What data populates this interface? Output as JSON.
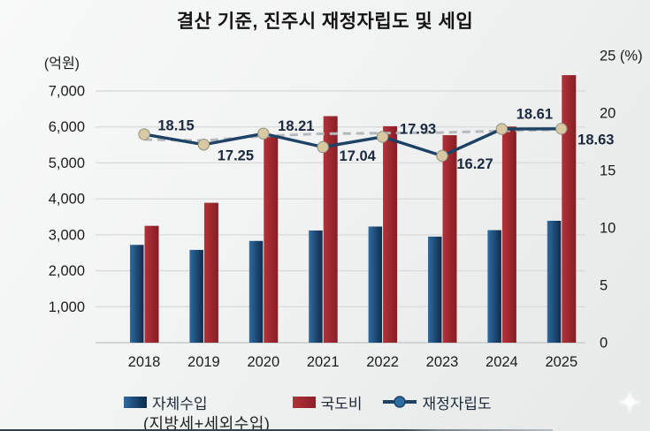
{
  "title": "결산 기준, 진주시 재정자립도 및 세입",
  "chart_data": {
    "type": "bar+line combo",
    "categories": [
      "2018",
      "2019",
      "2020",
      "2021",
      "2022",
      "2023",
      "2024",
      "2025"
    ],
    "series": [
      {
        "name": "자체수입",
        "type": "bar",
        "axis": "left",
        "color_from": "#2f6ba1",
        "color_to": "#0f2c4c",
        "values": [
          2720,
          2580,
          2830,
          3120,
          3230,
          2950,
          3130,
          3390
        ]
      },
      {
        "name": "국도비",
        "type": "bar",
        "axis": "left",
        "color_from": "#b23238",
        "color_to": "#871e25",
        "values": [
          3250,
          3890,
          5750,
          6300,
          6020,
          5770,
          6010,
          7440
        ]
      },
      {
        "name": "재정자립도",
        "type": "line",
        "axis": "right",
        "line_color": "#1e4265",
        "marker_fill": "#d8c9a2",
        "values": [
          18.15,
          17.25,
          18.21,
          17.04,
          17.93,
          16.27,
          18.61,
          18.63
        ],
        "labels": [
          "18.15",
          "17.25",
          "18.21",
          "17.04",
          "17.93",
          "16.27",
          "18.61",
          "18.63"
        ]
      }
    ],
    "trendline": {
      "style": "dashed",
      "color": "#b4b9bd",
      "values": [
        17.7,
        17.6,
        18.0,
        18.2,
        18.25,
        18.3,
        18.45,
        18.55
      ]
    },
    "left_axis": {
      "unit": "(억원)",
      "min": 0,
      "max": 7000,
      "step": 1000,
      "tick_labels": [
        "1,000",
        "2,000",
        "3,000",
        "4,000",
        "5,000",
        "6,000",
        "7,000"
      ]
    },
    "right_axis": {
      "unit": "(%)",
      "min": 0,
      "max": 25,
      "step": 5,
      "tick_labels": [
        "0",
        "5",
        "10",
        "15",
        "20",
        "25 (%)"
      ]
    },
    "grid": true,
    "legend_position": "bottom",
    "legend_note": "(지방세+세외수입)",
    "label_color": "#1b2940",
    "grid_color": "#d9dcde"
  }
}
